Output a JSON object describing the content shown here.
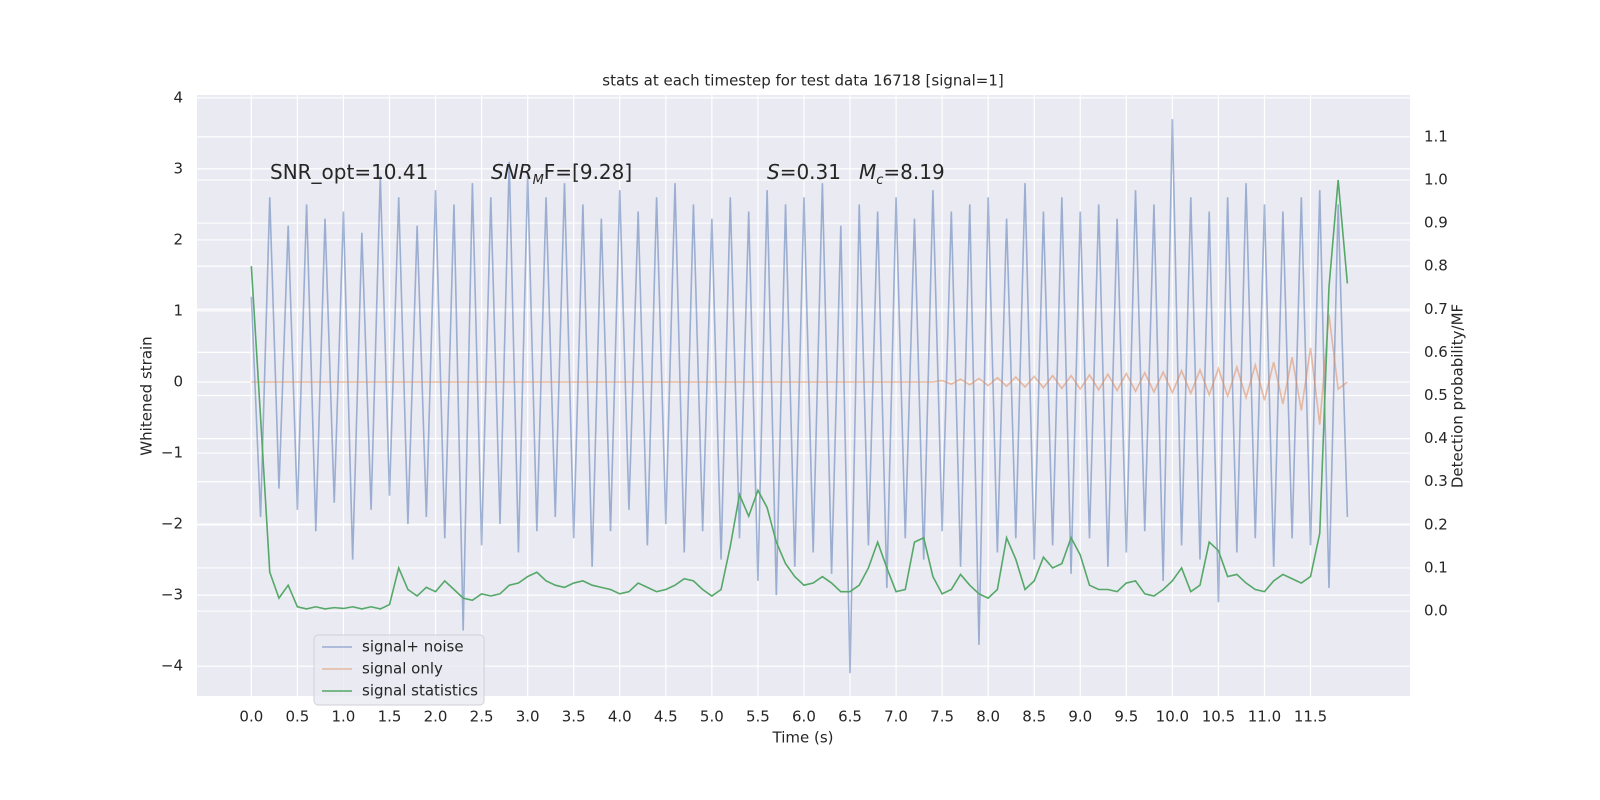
{
  "chart_data": {
    "type": "line",
    "title": "stats at each timestep for test data 16718 [signal=1]",
    "xlabel": "Time (s)",
    "ylabel": "Whitened strain",
    "y2label": "Detection probability/MF",
    "annotations": [
      {
        "parts": [
          {
            "text": "SNR_opt=10.41"
          }
        ]
      },
      {
        "parts": [
          {
            "text": "SNR",
            "style": "italic"
          },
          {
            "text": "M",
            "style": "sub"
          },
          {
            "text": "F=[9.28]"
          }
        ]
      },
      {
        "parts": [
          {
            "text": "S",
            "style": "italic"
          },
          {
            "text": "=0.31"
          }
        ]
      },
      {
        "parts": [
          {
            "text": "M",
            "style": "italic"
          },
          {
            "text": "c",
            "style": "sub"
          },
          {
            "text": "=8.19"
          }
        ]
      }
    ],
    "x": [
      0.0,
      0.1,
      0.2,
      0.3,
      0.4,
      0.5,
      0.6,
      0.7,
      0.8,
      0.9,
      1.0,
      1.1,
      1.2,
      1.3,
      1.4,
      1.5,
      1.6,
      1.7,
      1.8,
      1.9,
      2.0,
      2.1,
      2.2,
      2.3,
      2.4,
      2.5,
      2.6,
      2.7,
      2.8,
      2.9,
      3.0,
      3.1,
      3.2,
      3.3,
      3.4,
      3.5,
      3.6,
      3.7,
      3.8,
      3.9,
      4.0,
      4.1,
      4.2,
      4.3,
      4.4,
      4.5,
      4.6,
      4.7,
      4.8,
      4.9,
      5.0,
      5.1,
      5.2,
      5.3,
      5.4,
      5.5,
      5.6,
      5.7,
      5.8,
      5.9,
      6.0,
      6.1,
      6.2,
      6.3,
      6.4,
      6.5,
      6.6,
      6.7,
      6.8,
      6.9,
      7.0,
      7.1,
      7.2,
      7.3,
      7.4,
      7.5,
      7.6,
      7.7,
      7.8,
      7.9,
      8.0,
      8.1,
      8.2,
      8.3,
      8.4,
      8.5,
      8.6,
      8.7,
      8.8,
      8.9,
      9.0,
      9.1,
      9.2,
      9.3,
      9.4,
      9.5,
      9.6,
      9.7,
      9.8,
      9.9,
      10.0,
      10.1,
      10.2,
      10.3,
      10.4,
      10.5,
      10.6,
      10.7,
      10.8,
      10.9,
      11.0,
      11.1,
      11.2,
      11.3,
      11.4,
      11.5,
      11.6,
      11.7,
      11.8,
      11.9
    ],
    "series": [
      {
        "name": "signal+ noise",
        "color": "#4c72b0",
        "alpha": 0.5,
        "values": [
          1.2,
          -1.9,
          2.6,
          -1.5,
          2.2,
          -1.8,
          2.5,
          -2.1,
          2.3,
          -1.7,
          2.4,
          -2.5,
          2.1,
          -1.8,
          2.9,
          -1.6,
          2.6,
          -2.0,
          2.2,
          -1.9,
          2.7,
          -2.2,
          2.5,
          -3.5,
          2.8,
          -2.3,
          2.6,
          -2.0,
          3.1,
          -2.4,
          2.9,
          -2.1,
          2.6,
          -1.9,
          2.8,
          -2.2,
          2.5,
          -2.6,
          2.3,
          -2.1,
          2.7,
          -1.8,
          2.4,
          -2.3,
          2.6,
          -2.0,
          2.8,
          -2.4,
          2.5,
          -2.1,
          2.3,
          -2.5,
          2.6,
          -2.2,
          2.4,
          -2.8,
          2.7,
          -3.0,
          2.5,
          -2.6,
          2.6,
          -2.4,
          2.8,
          -2.7,
          2.2,
          -4.1,
          2.5,
          -2.3,
          2.4,
          -2.9,
          2.6,
          -2.2,
          2.3,
          -2.5,
          2.7,
          -2.1,
          2.4,
          -2.6,
          2.5,
          -3.7,
          2.6,
          -2.4,
          2.3,
          -2.2,
          2.8,
          -2.5,
          2.4,
          -2.3,
          2.6,
          -2.7,
          2.4,
          -2.2,
          2.5,
          -2.6,
          2.3,
          -2.4,
          2.7,
          -2.1,
          2.5,
          -2.8,
          3.7,
          -2.3,
          2.6,
          -2.5,
          2.4,
          -3.1,
          2.6,
          -2.4,
          2.8,
          -2.2,
          2.5,
          -2.6,
          2.4,
          -2.2,
          2.6,
          -2.3,
          2.7,
          -2.9,
          2.5,
          -1.9
        ]
      },
      {
        "name": "signal only",
        "color": "#dd8452",
        "alpha": 0.5,
        "values": [
          0,
          0,
          0,
          0,
          0,
          0,
          0,
          0,
          0,
          0,
          0,
          0,
          0,
          0,
          0,
          0,
          0,
          0,
          0,
          0,
          0,
          0,
          0,
          0,
          0,
          0,
          0,
          0,
          0,
          0,
          0,
          0,
          0,
          0,
          0,
          0,
          0,
          0,
          0,
          0,
          0,
          0,
          0,
          0,
          0,
          0,
          0,
          0,
          0,
          0,
          0,
          0,
          0,
          0,
          0,
          0,
          0,
          0,
          0,
          0,
          0,
          0,
          0,
          0,
          0,
          0,
          0,
          0,
          0,
          0,
          0,
          0,
          0,
          0,
          0,
          0.02,
          -0.03,
          0.04,
          -0.04,
          0.05,
          -0.05,
          0.06,
          -0.06,
          0.07,
          -0.07,
          0.08,
          -0.08,
          0.09,
          -0.09,
          0.09,
          -0.1,
          0.1,
          -0.11,
          0.11,
          -0.12,
          0.12,
          -0.13,
          0.13,
          -0.14,
          0.14,
          -0.15,
          0.16,
          -0.16,
          0.17,
          -0.18,
          0.19,
          -0.2,
          0.21,
          -0.22,
          0.24,
          -0.26,
          0.28,
          -0.31,
          0.35,
          -0.4,
          0.48,
          -0.6,
          0.95,
          -0.1,
          0.0
        ]
      },
      {
        "name": "signal statistics",
        "color": "#55a868",
        "alpha": 1,
        "axis": "y2",
        "values": [
          0.8,
          0.45,
          0.09,
          0.03,
          0.06,
          0.01,
          0.005,
          0.01,
          0.005,
          0.008,
          0.006,
          0.01,
          0.005,
          0.01,
          0.005,
          0.015,
          0.1,
          0.05,
          0.035,
          0.055,
          0.045,
          0.07,
          0.05,
          0.03,
          0.025,
          0.04,
          0.035,
          0.04,
          0.06,
          0.065,
          0.08,
          0.09,
          0.07,
          0.06,
          0.055,
          0.065,
          0.07,
          0.06,
          0.055,
          0.05,
          0.04,
          0.045,
          0.065,
          0.055,
          0.045,
          0.05,
          0.06,
          0.075,
          0.07,
          0.05,
          0.035,
          0.05,
          0.15,
          0.27,
          0.22,
          0.28,
          0.24,
          0.16,
          0.11,
          0.08,
          0.06,
          0.065,
          0.08,
          0.065,
          0.045,
          0.045,
          0.06,
          0.1,
          0.16,
          0.1,
          0.045,
          0.05,
          0.16,
          0.17,
          0.08,
          0.04,
          0.05,
          0.085,
          0.06,
          0.04,
          0.03,
          0.05,
          0.17,
          0.12,
          0.05,
          0.07,
          0.125,
          0.1,
          0.11,
          0.17,
          0.13,
          0.06,
          0.05,
          0.05,
          0.045,
          0.065,
          0.07,
          0.04,
          0.035,
          0.05,
          0.07,
          0.1,
          0.045,
          0.06,
          0.16,
          0.14,
          0.08,
          0.085,
          0.065,
          0.05,
          0.045,
          0.07,
          0.085,
          0.075,
          0.065,
          0.08,
          0.18,
          0.75,
          1.0,
          0.76
        ]
      }
    ],
    "xlim": [
      -0.59,
      12.58
    ],
    "xticks": [
      {
        "value": 0,
        "label": "0.0"
      },
      0.5,
      {
        "value": 1,
        "label": "1.0"
      },
      1.5,
      {
        "value": 2,
        "label": "2.0"
      },
      2.5,
      {
        "value": 3,
        "label": "3.0"
      },
      3.5,
      {
        "value": 4,
        "label": "4.0"
      },
      4.5,
      {
        "value": 5,
        "label": "5.0"
      },
      5.5,
      {
        "value": 6,
        "label": "6.0"
      },
      6.5,
      {
        "value": 7,
        "label": "7.0"
      },
      7.5,
      {
        "value": 8,
        "label": "8.0"
      },
      8.5,
      {
        "value": 9,
        "label": "9.0"
      },
      9.5,
      {
        "value": 10,
        "label": "10.0"
      },
      10.5,
      {
        "value": 11,
        "label": "11.0"
      },
      11.5
    ],
    "ylim": [
      -4.42,
      4.04
    ],
    "yticks": [
      {
        "value": -4,
        "label": "−4"
      },
      {
        "value": -3,
        "label": "−3"
      },
      {
        "value": -2,
        "label": "−2"
      },
      {
        "value": -1,
        "label": "−1"
      },
      0,
      1,
      2,
      3,
      4
    ],
    "y2lim": [
      -0.197,
      1.197
    ],
    "y2ticks": [
      {
        "value": 0,
        "label": "0.0"
      },
      0.1,
      0.2,
      0.3,
      0.4,
      0.5,
      0.6,
      0.7,
      0.8,
      0.9,
      {
        "value": 1,
        "label": "1.0"
      },
      1.1
    ],
    "grid": true,
    "legend": "lower left"
  }
}
